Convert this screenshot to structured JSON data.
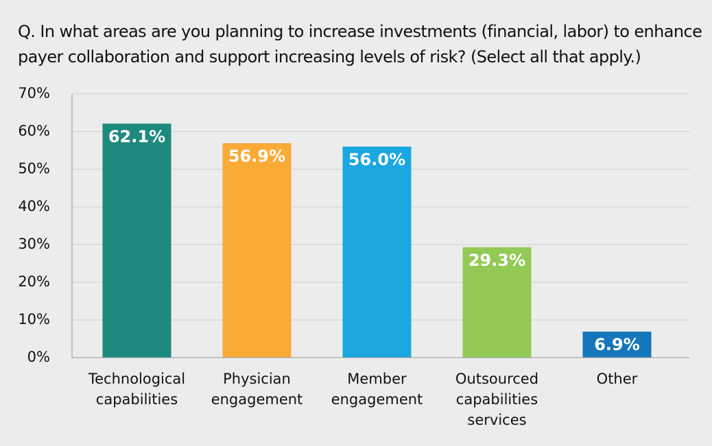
{
  "chart_data": {
    "type": "bar",
    "title": "Q. In what areas are you planning to increase investments (financial, labor) to enhance payer collaboration and support increasing levels of risk? (Select all that apply.)",
    "categories": [
      "Technological capabilities",
      "Physician engagement",
      "Member engagement",
      "Outsourced capabilities services",
      "Other"
    ],
    "values": [
      62.1,
      56.9,
      56.0,
      29.3,
      6.9
    ],
    "value_labels": [
      "62.1%",
      "56.9%",
      "56.0%",
      "29.3%",
      "6.9%"
    ],
    "colors": [
      "#1e8a7e",
      "#faab36",
      "#1ba7e0",
      "#93c955",
      "#1576bc"
    ],
    "ylim": [
      0,
      70
    ],
    "yticks": [
      {
        "value": 0,
        "label": "0%"
      },
      {
        "value": 10,
        "label": "10%"
      },
      {
        "value": 20,
        "label": "20%"
      },
      {
        "value": 30,
        "label": "30%"
      },
      {
        "value": 40,
        "label": "40%"
      },
      {
        "value": 50,
        "label": "50%"
      },
      {
        "value": 60,
        "label": "60%"
      },
      {
        "value": 70,
        "label": "70%"
      }
    ],
    "grid": true
  }
}
